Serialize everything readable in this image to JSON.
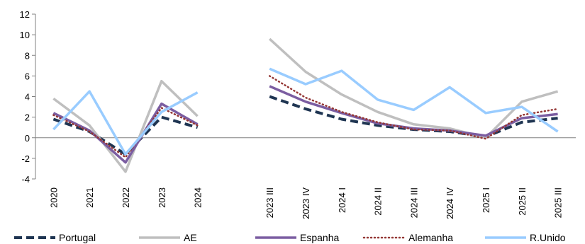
{
  "chart_data": {
    "type": "line",
    "categories": [
      "2020",
      "2021",
      "2022",
      "2023",
      "2024",
      "",
      "2023 III",
      "2023 IV",
      "2024 I",
      "2024 II",
      "2024 III",
      "2024 IV",
      "2025 I",
      "2025 II",
      "2025 III"
    ],
    "ylim": [
      -4,
      12
    ],
    "yticks": [
      -4,
      -2,
      0,
      2,
      4,
      6,
      8,
      10,
      12
    ],
    "grid": false,
    "legend": "bottom",
    "series": [
      {
        "name": "Portugal",
        "color": "#1f3552",
        "style": "dashed",
        "segments": [
          [
            1.8,
            0.6,
            -1.6,
            2.0,
            1.0
          ],
          [
            4.0,
            2.8,
            1.8,
            1.2,
            0.8,
            0.6,
            0.1,
            1.5,
            1.9
          ]
        ]
      },
      {
        "name": "AE",
        "color": "#bfbfbf",
        "style": "solid",
        "segments": [
          [
            3.8,
            1.2,
            -3.3,
            5.5,
            2.1
          ],
          [
            9.6,
            6.4,
            4.2,
            2.5,
            1.3,
            0.9,
            0.0,
            3.5,
            4.5
          ]
        ]
      },
      {
        "name": "Espanha",
        "color": "#7b5da1",
        "style": "solid",
        "segments": [
          [
            2.4,
            0.7,
            -2.4,
            3.3,
            1.3
          ],
          [
            5.0,
            3.5,
            2.4,
            1.4,
            0.9,
            0.7,
            0.2,
            1.9,
            2.3
          ]
        ]
      },
      {
        "name": "Alemanha",
        "color": "#943634",
        "style": "dotted",
        "segments": [
          [
            2.2,
            0.6,
            -1.9,
            2.9,
            1.2
          ],
          [
            6.0,
            3.9,
            2.5,
            1.5,
            0.8,
            0.7,
            -0.1,
            2.2,
            2.8
          ]
        ]
      },
      {
        "name": "R.Unido",
        "color": "#99ccff",
        "style": "solid",
        "segments": [
          [
            0.8,
            4.5,
            -1.6,
            2.5,
            4.4
          ],
          [
            6.7,
            5.2,
            6.5,
            3.7,
            2.7,
            4.9,
            2.4,
            3.0,
            0.6
          ]
        ]
      }
    ]
  }
}
